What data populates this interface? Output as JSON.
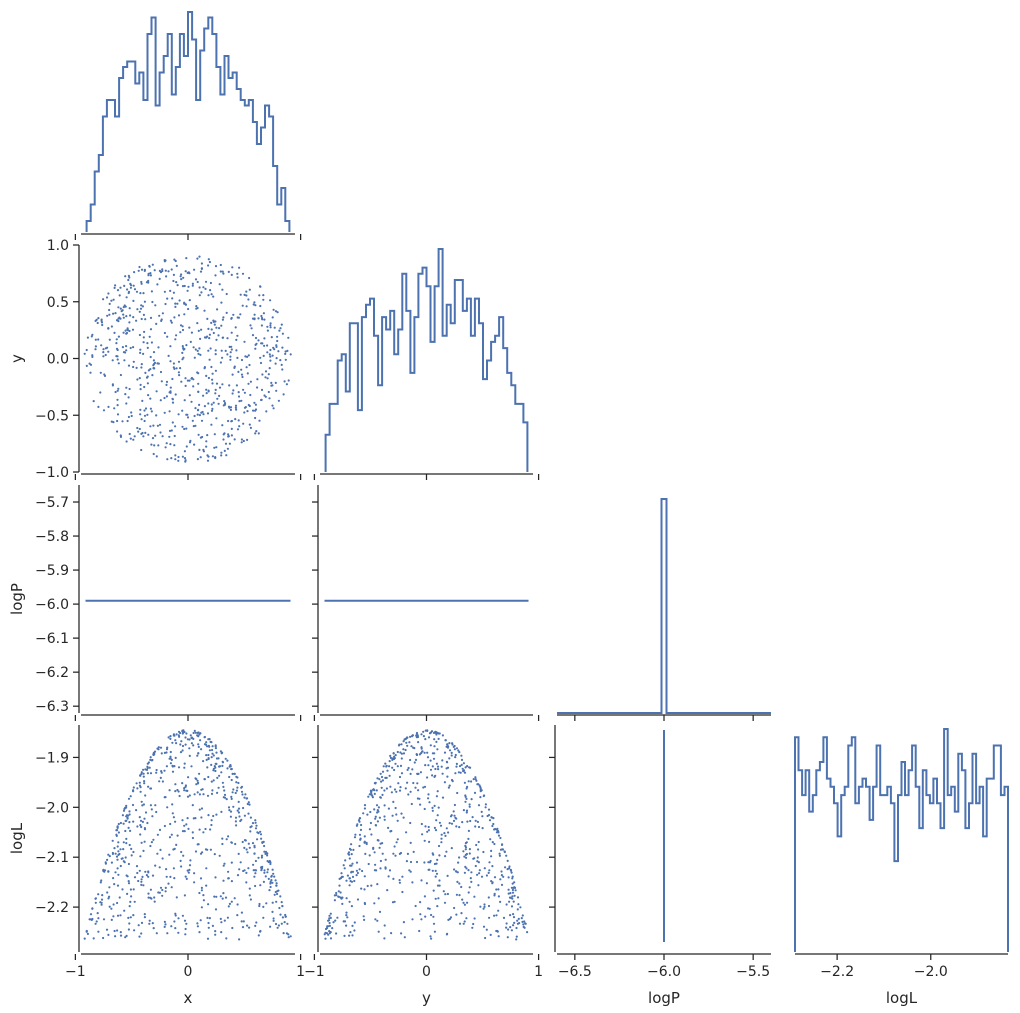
{
  "chart_data": {
    "type": "corner",
    "colors": {
      "series": "#4c72b0",
      "axis": "#262626"
    },
    "variables": [
      "x",
      "y",
      "logP",
      "logL"
    ],
    "ranges": {
      "x": [
        -0.95,
        0.95
      ],
      "y": [
        -1.0,
        0.95
      ],
      "logP": [
        -6.6,
        -5.4
      ],
      "logL": [
        -2.29,
        -1.835
      ]
    },
    "axis_labels": {
      "x": "x",
      "y": "y",
      "logP": "logP",
      "logL": "logL"
    },
    "ticks": {
      "x": [
        {
          "v": -1,
          "t": "−1"
        },
        {
          "v": 0,
          "t": "0"
        },
        {
          "v": 1,
          "t": "1"
        }
      ],
      "y": [
        {
          "v": -1,
          "t": "−1"
        },
        {
          "v": 0,
          "t": "0"
        },
        {
          "v": 1,
          "t": "1"
        }
      ],
      "logP_x": [
        {
          "v": -6.5,
          "t": "−6.5"
        },
        {
          "v": -6.0,
          "t": "−6.0"
        },
        {
          "v": -5.5,
          "t": "−5.5"
        }
      ],
      "logL_x": [
        {
          "v": -2.2,
          "t": "−2.2"
        },
        {
          "v": -2.0,
          "t": "−2.0"
        }
      ],
      "y_row": [
        {
          "v": -1.0,
          "t": "−1.0"
        },
        {
          "v": -0.5,
          "t": "−0.5"
        },
        {
          "v": 0.0,
          "t": "0.0"
        },
        {
          "v": 0.5,
          "t": "0.5"
        },
        {
          "v": 1.0,
          "t": "1.0"
        }
      ],
      "logP_row": [
        {
          "v": -6.3,
          "t": "−6.3"
        },
        {
          "v": -6.2,
          "t": "−6.2"
        },
        {
          "v": -6.1,
          "t": "−6.1"
        },
        {
          "v": -6.0,
          "t": "−6.0"
        },
        {
          "v": -5.9,
          "t": "−5.9"
        },
        {
          "v": -5.8,
          "t": "−5.8"
        },
        {
          "v": -5.7,
          "t": "−5.7"
        }
      ],
      "logL_row": [
        {
          "v": -2.2,
          "t": "−2.2"
        },
        {
          "v": -2.1,
          "t": "−2.1"
        },
        {
          "v": -2.0,
          "t": "−2.0"
        },
        {
          "v": -1.9,
          "t": "−1.9"
        }
      ]
    },
    "logP_row_range": [
      -6.32,
      -5.65
    ],
    "constant_logP": -5.99,
    "histograms": {
      "x": {
        "edges": [
          -0.9,
          0.9
        ],
        "counts": [
          2,
          5,
          11,
          14,
          21,
          24,
          24,
          21,
          28,
          30,
          31,
          31,
          27,
          29,
          24,
          36,
          39,
          23,
          29,
          32,
          36,
          25,
          30,
          36,
          32,
          40,
          35,
          24,
          33,
          37,
          39,
          36,
          30,
          25,
          32,
          28,
          29,
          26,
          24,
          23,
          24,
          20,
          16,
          19,
          23,
          21,
          12,
          5,
          8,
          2
        ]
      },
      "y": {
        "edges": [
          -0.9,
          0.9
        ],
        "counts": [
          6,
          11,
          11,
          18,
          19,
          13,
          24,
          24,
          10,
          25,
          27,
          28,
          22,
          14,
          25,
          23,
          26,
          19,
          23,
          32,
          26,
          16,
          25,
          32,
          33,
          30,
          21,
          30,
          36,
          22,
          27,
          24,
          31,
          31,
          26,
          28,
          22,
          28,
          24,
          15,
          18,
          21,
          22,
          25,
          20,
          16,
          14,
          11,
          11,
          8
        ]
      },
      "logP": {
        "center": -6.0,
        "spike_count": 1000
      },
      "logL": {
        "edges": [
          -2.29,
          -1.835
        ],
        "counts": [
          26,
          22,
          19,
          22,
          17,
          19,
          22,
          23,
          26,
          21,
          20,
          18,
          14,
          19,
          20,
          25,
          26,
          18,
          20,
          21,
          20,
          16,
          20,
          25,
          19,
          19,
          20,
          18,
          11,
          19,
          23,
          19,
          22,
          25,
          20,
          15,
          22,
          19,
          18,
          21,
          18,
          15,
          27,
          19,
          20,
          17,
          24,
          22,
          15,
          18,
          24,
          18,
          20,
          14,
          21,
          21,
          25,
          25,
          19,
          20
        ]
      }
    }
  }
}
